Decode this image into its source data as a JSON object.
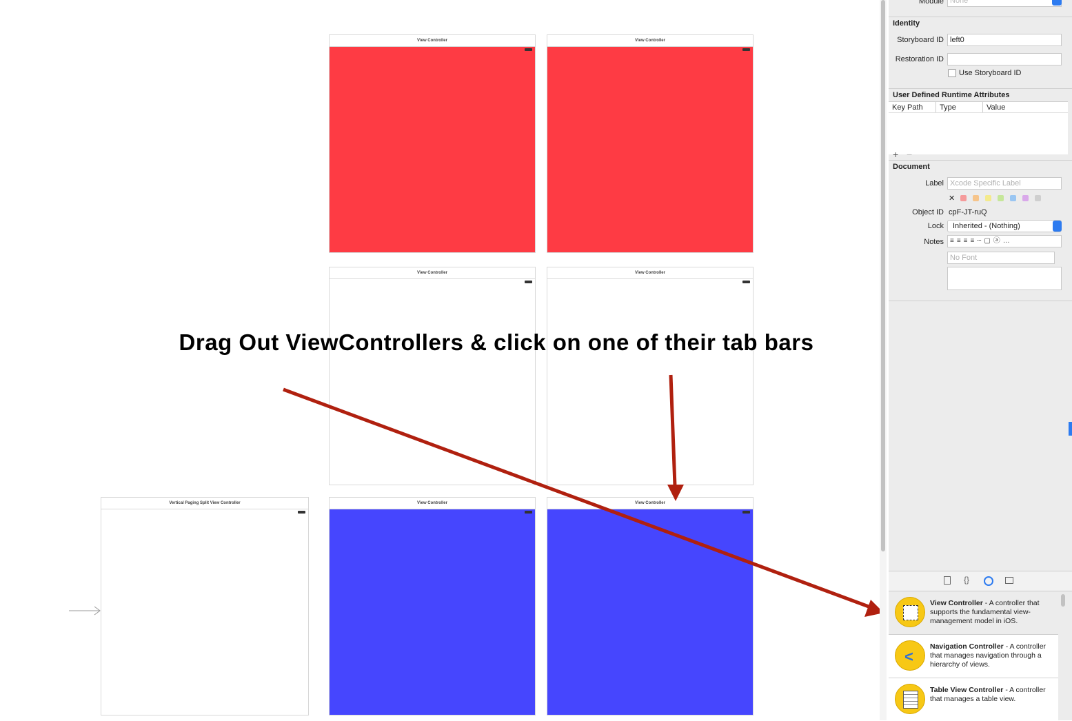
{
  "canvas": {
    "scenes": [
      {
        "title": "View Controller"
      },
      {
        "title": "View Controller"
      },
      {
        "title": "View Controller"
      },
      {
        "title": "View Controller"
      },
      {
        "title": "Vertical Paging Split View Controller"
      },
      {
        "title": "View Controller"
      },
      {
        "title": "View Controller"
      }
    ],
    "instruction": "Drag Out ViewControllers & click on one of their tab bars"
  },
  "inspector": {
    "module_label": "Module",
    "module_value": "None",
    "identity": {
      "heading": "Identity",
      "storyboard_id_label": "Storyboard ID",
      "storyboard_id": "left0",
      "restoration_id_label": "Restoration ID",
      "use_storyboard_id": "Use Storyboard ID"
    },
    "runtime_attributes": {
      "heading": "User Defined Runtime Attributes",
      "columns": [
        "Key Path",
        "Type",
        "Value"
      ]
    },
    "document": {
      "heading": "Document",
      "label_label": "Label",
      "label_placeholder": "Xcode Specific Label",
      "object_id_label": "Object ID",
      "object_id": "cpF-JT-ruQ",
      "lock_label": "Lock",
      "lock_value": "Inherited - (Nothing)",
      "notes_label": "Notes",
      "font_placeholder": "No Font"
    }
  },
  "library": {
    "items": [
      {
        "name": "View Controller",
        "description": "- A controller that supports the fundamental view-management model in iOS."
      },
      {
        "name": "Navigation Controller",
        "description": "- A controller that manages navigation through a hierarchy of views."
      },
      {
        "name": "Table View Controller",
        "description": "- A controller that manages a table view."
      }
    ]
  }
}
